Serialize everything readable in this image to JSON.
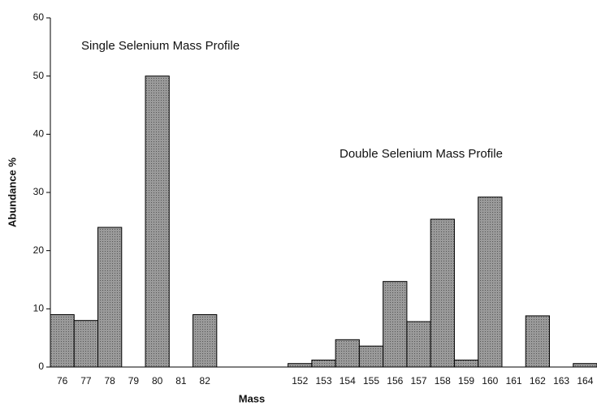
{
  "chart_data": {
    "type": "bar",
    "x_label": "Mass",
    "y_label": "Abundance %",
    "annotations": [
      "Single Selenium Mass Profile",
      "Double Selenium Mass Profile"
    ],
    "categories": [
      "76",
      "77",
      "78",
      "79",
      "80",
      "81",
      "82",
      null,
      null,
      null,
      "152",
      "153",
      "154",
      "155",
      "156",
      "157",
      "158",
      "159",
      "160",
      "161",
      "162",
      "163",
      "164"
    ],
    "values": [
      9,
      8,
      24,
      0,
      50,
      0,
      9,
      null,
      null,
      null,
      0.6,
      1.2,
      4.7,
      3.6,
      14.7,
      7.8,
      25.4,
      1.2,
      29.2,
      0,
      8.8,
      0,
      0.6
    ],
    "color": "#9a9a9a",
    "ylim": [
      0,
      60
    ],
    "yticks": [
      0,
      10,
      20,
      30,
      40,
      50,
      60
    ]
  }
}
